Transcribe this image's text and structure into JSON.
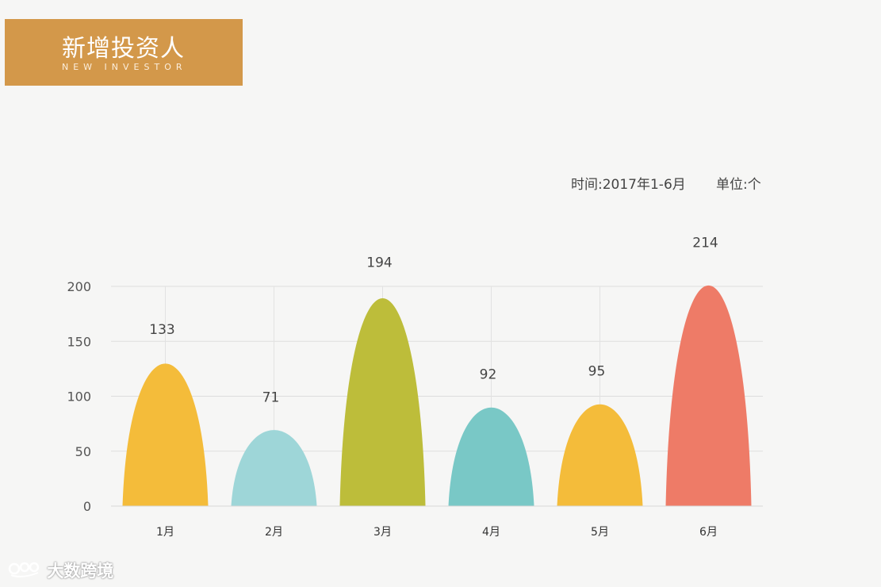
{
  "header": {
    "title": "新增投资人",
    "subtitle": "NEW INVESTOR"
  },
  "meta": {
    "time": "时间:2017年1-6月",
    "unit": "单位:个"
  },
  "watermark": {
    "text": "大数跨境",
    "logo_icon": "dashuju-logo-icon"
  },
  "chart_data": {
    "type": "bar",
    "shape": "parabolic-arch",
    "categories": [
      "1月",
      "2月",
      "3月",
      "4月",
      "5月",
      "6月"
    ],
    "values": [
      133,
      71,
      194,
      92,
      95,
      214
    ],
    "data_labels": [
      "133",
      "71",
      "194",
      "92",
      "95",
      "214"
    ],
    "colors": [
      "#f4bc3a",
      "#9ed6d8",
      "#bdbd3a",
      "#79c8c6",
      "#f4bc3a",
      "#ee7b67"
    ],
    "yticks": [
      0,
      50,
      100,
      150,
      200
    ],
    "ylim": [
      0,
      200
    ],
    "grid": true,
    "title": "",
    "xlabel": "",
    "ylabel": ""
  }
}
